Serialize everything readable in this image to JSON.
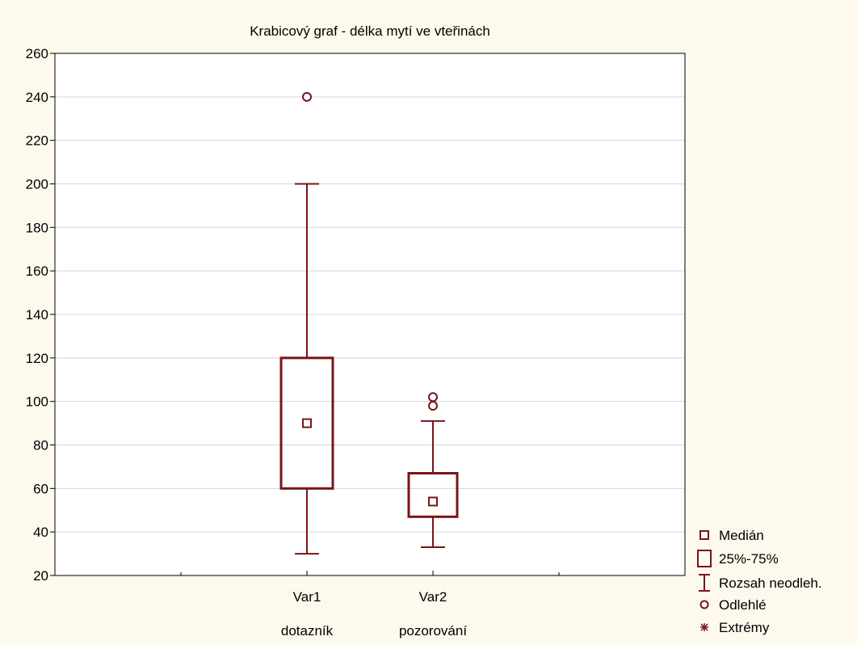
{
  "chart_data": {
    "type": "box",
    "title": "Krabicový graf - délka mytí ve vteřinách",
    "ylim": [
      20,
      260
    ],
    "yticks": [
      20,
      40,
      60,
      80,
      100,
      120,
      140,
      160,
      180,
      200,
      220,
      240,
      260
    ],
    "grid": true,
    "categories": [
      "Var1",
      "Var2"
    ],
    "category_descriptions": [
      "dotazník",
      "pozorování"
    ],
    "boxes": [
      {
        "name": "Var1",
        "median": 90,
        "q1": 60,
        "q3": 120,
        "whisker_low": 30,
        "whisker_high": 200,
        "outliers": [
          240
        ],
        "extremes": []
      },
      {
        "name": "Var2",
        "median": 54,
        "q1": 47,
        "q3": 67,
        "whisker_low": 33,
        "whisker_high": 91,
        "outliers": [
          98,
          102
        ],
        "extremes": []
      }
    ],
    "legend_position": "bottom-right",
    "legend": [
      "Medián",
      "25%-75%",
      "Rozsah neodleh.",
      "Odlehlé",
      "Extrémy"
    ],
    "colors": {
      "box": "#7b1416",
      "grid": "#d4d4d4",
      "background": "#fdf9ed",
      "plot": "#ffffff"
    }
  }
}
